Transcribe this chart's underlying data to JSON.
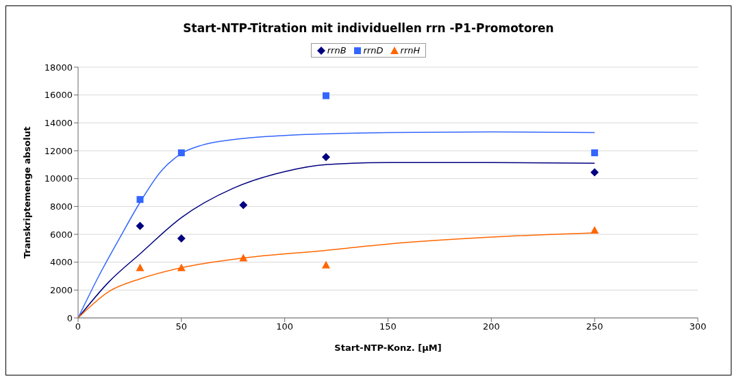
{
  "chart_data": {
    "type": "scatter",
    "title": "Start-NTP-Titration mit individuellen rrn -P1-Promotoren",
    "xlabel": "Start-NTP-Konz. [µM]",
    "ylabel": "Transkriptemenge absolut",
    "xlim": [
      0,
      300
    ],
    "xticks": [
      0,
      50,
      100,
      150,
      200,
      250,
      300
    ],
    "ylim": [
      0,
      18000
    ],
    "yticks": [
      0,
      2000,
      4000,
      6000,
      8000,
      10000,
      12000,
      14000,
      16000,
      18000
    ],
    "grid": "y",
    "legend": "top",
    "series": [
      {
        "name": "rrnB",
        "color": "#000080",
        "marker": "diamond",
        "x": [
          30,
          50,
          80,
          120,
          250
        ],
        "values": [
          6600,
          5700,
          8100,
          11550,
          10450
        ]
      },
      {
        "name": "rrnD",
        "color": "#3366ff",
        "marker": "square",
        "x": [
          30,
          50,
          120,
          250
        ],
        "values": [
          8500,
          11850,
          15950,
          11850
        ]
      },
      {
        "name": "rrnH",
        "color": "#ff6600",
        "marker": "triangle",
        "x": [
          30,
          50,
          80,
          120,
          250
        ],
        "values": [
          3600,
          3600,
          4300,
          3800,
          6300
        ]
      },
      {
        "type": "line",
        "color": "#000080",
        "x": [
          0,
          15,
          30,
          50,
          75,
          100,
          120,
          150,
          200,
          250
        ],
        "values": [
          0,
          2600,
          4600,
          7200,
          9300,
          10500,
          11000,
          11150,
          11150,
          11100
        ]
      },
      {
        "type": "line",
        "color": "#3366ff",
        "x": [
          0,
          10,
          20,
          30,
          40,
          50,
          60,
          75,
          100,
          150,
          200,
          250
        ],
        "values": [
          0,
          3000,
          5700,
          8300,
          10500,
          11800,
          12400,
          12800,
          13100,
          13300,
          13350,
          13300
        ]
      },
      {
        "type": "line",
        "color": "#ff6600",
        "x": [
          0,
          15,
          30,
          50,
          80,
          120,
          150,
          200,
          250
        ],
        "values": [
          0,
          1900,
          2800,
          3600,
          4300,
          4850,
          5300,
          5800,
          6100
        ]
      }
    ]
  }
}
